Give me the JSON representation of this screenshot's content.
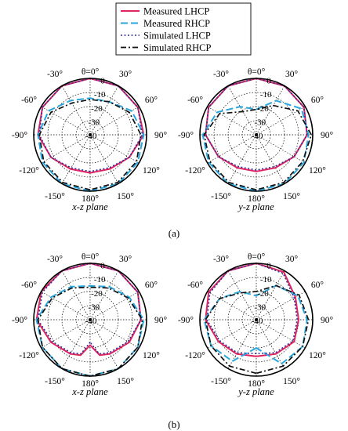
{
  "figure": {
    "legend": [
      {
        "label": "Measured LHCP",
        "color": "#e0245e",
        "dash": "solid"
      },
      {
        "label": "Measured RHCP",
        "color": "#2aa6dc",
        "dash": "long-dash"
      },
      {
        "label": "Simulated LHCP",
        "color": "#2b2b9f",
        "dash": "dotted"
      },
      {
        "label": "Simulated RHCP",
        "color": "#111111",
        "dash": "dash-dot"
      }
    ],
    "row_labels": [
      "(a)",
      "(b)"
    ]
  },
  "chart_data": [
    {
      "type": "polar",
      "panel_label": "x-z plane",
      "angle_labels": [
        "θ=0°",
        "30°",
        "60°",
        "90°",
        "120°",
        "150°",
        "180°",
        "-150°",
        "-120°",
        "-90°",
        "-60°",
        "-30°"
      ],
      "radial_labels": [
        "0",
        "-10",
        "-20",
        "-30",
        "-40"
      ],
      "radial_range_dB": [
        -40,
        0
      ],
      "grid": true,
      "series": [
        {
          "name": "Measured LHCP",
          "theta_deg": [
            -180,
            -150,
            -120,
            -90,
            -60,
            -30,
            0,
            30,
            60,
            90,
            120,
            150,
            180
          ],
          "gain_dB": [
            -13,
            -12,
            -8,
            -3,
            -1,
            0,
            0,
            0,
            -1,
            -2,
            -8,
            -12,
            -13
          ]
        },
        {
          "name": "Measured RHCP",
          "theta_deg": [
            -180,
            -150,
            -120,
            -90,
            -60,
            -30,
            0,
            30,
            60,
            90,
            120,
            150,
            180
          ],
          "gain_dB": [
            0,
            0,
            -1,
            -3,
            -6,
            -12,
            -14,
            -13,
            -6,
            -2,
            -1,
            0,
            0
          ]
        },
        {
          "name": "Simulated LHCP",
          "theta_deg": [
            -180,
            -150,
            -120,
            -90,
            -60,
            -30,
            0,
            30,
            60,
            90,
            120,
            150,
            180
          ],
          "gain_dB": [
            -14,
            -13,
            -8,
            -4,
            -1,
            0,
            0,
            0,
            -1,
            -3,
            -8,
            -13,
            -14
          ]
        },
        {
          "name": "Simulated RHCP",
          "theta_deg": [
            -180,
            -150,
            -120,
            -90,
            -60,
            -30,
            0,
            30,
            60,
            90,
            120,
            150,
            180
          ],
          "gain_dB": [
            -1,
            -1,
            -2,
            -4,
            -8,
            -14,
            -15,
            -13,
            -8,
            -4,
            -2,
            -1,
            -1
          ]
        }
      ]
    },
    {
      "type": "polar",
      "panel_label": "y-z plane",
      "angle_labels": [
        "θ=0°",
        "30°",
        "60°",
        "90°",
        "120°",
        "150°",
        "180°",
        "-150°",
        "-120°",
        "-90°",
        "-60°",
        "-30°"
      ],
      "radial_labels": [
        "0",
        "-10",
        "-20",
        "-30",
        "-40"
      ],
      "radial_range_dB": [
        -40,
        0
      ],
      "grid": true,
      "series": [
        {
          "name": "Measured LHCP",
          "theta_deg": [
            -180,
            -150,
            -120,
            -90,
            -60,
            -30,
            0,
            30,
            60,
            90,
            120,
            150,
            180
          ],
          "gain_dB": [
            -14,
            -13,
            -9,
            -4,
            -1,
            0,
            0,
            0,
            -1,
            -4,
            -9,
            -13,
            -14
          ]
        },
        {
          "name": "Measured RHCP",
          "theta_deg": [
            -180,
            -150,
            -120,
            -90,
            -60,
            -30,
            0,
            30,
            60,
            90,
            120,
            150,
            180
          ],
          "gain_dB": [
            0,
            0,
            -1,
            -2,
            -8,
            -17,
            -22,
            -12,
            -3,
            -3,
            -1,
            0,
            0
          ]
        },
        {
          "name": "Simulated LHCP",
          "theta_deg": [
            -180,
            -150,
            -120,
            -90,
            -60,
            -30,
            0,
            30,
            60,
            90,
            120,
            150,
            180
          ],
          "gain_dB": [
            -15,
            -14,
            -9,
            -4,
            -1,
            0,
            0,
            0,
            -1,
            -4,
            -9,
            -14,
            -15
          ]
        },
        {
          "name": "Simulated RHCP",
          "theta_deg": [
            -180,
            -150,
            -120,
            -90,
            -60,
            -30,
            0,
            30,
            60,
            90,
            120,
            150,
            180
          ],
          "gain_dB": [
            -1,
            -1,
            -2,
            -3,
            -10,
            -21,
            -22,
            -16,
            -6,
            -1,
            -2,
            -1,
            -1
          ]
        }
      ]
    },
    {
      "type": "polar",
      "panel_label": "x-z plane",
      "angle_labels": [
        "θ=0°",
        "30°",
        "60°",
        "90°",
        "120°",
        "150°",
        "180°",
        "-150°",
        "-120°",
        "-90°",
        "-60°",
        "-30°"
      ],
      "radial_labels": [
        "0",
        "-10",
        "-20",
        "-30",
        "-40"
      ],
      "radial_range_dB": [
        -40,
        0
      ],
      "grid": true,
      "series": [
        {
          "name": "Measured LHCP",
          "theta_deg": [
            -180,
            -165,
            -150,
            -120,
            -90,
            -60,
            -30,
            0,
            30,
            60,
            90,
            120,
            150,
            165,
            180
          ],
          "gain_dB": [
            -22,
            -14,
            -12,
            -8,
            -2,
            0,
            0,
            0,
            0,
            -1,
            -4,
            -8,
            -12,
            -14,
            -22
          ]
        },
        {
          "name": "Measured RHCP",
          "theta_deg": [
            -180,
            -150,
            -120,
            -90,
            -60,
            -30,
            0,
            30,
            60,
            90,
            120,
            150,
            180
          ],
          "gain_dB": [
            0,
            0,
            -1,
            -2,
            -8,
            -13,
            -16,
            -13,
            -8,
            -2,
            -1,
            0,
            0
          ]
        },
        {
          "name": "Simulated LHCP",
          "theta_deg": [
            -180,
            -165,
            -150,
            -120,
            -90,
            -60,
            -30,
            0,
            30,
            60,
            90,
            120,
            150,
            165,
            180
          ],
          "gain_dB": [
            -24,
            -15,
            -13,
            -9,
            -3,
            -1,
            0,
            0,
            0,
            -1,
            -4,
            -9,
            -13,
            -15,
            -24
          ]
        },
        {
          "name": "Simulated RHCP",
          "theta_deg": [
            -180,
            -150,
            -120,
            -90,
            -60,
            -30,
            0,
            30,
            60,
            90,
            120,
            150,
            180
          ],
          "gain_dB": [
            0,
            0,
            -1,
            -3,
            -9,
            -14,
            -17,
            -14,
            -9,
            -3,
            -1,
            0,
            0
          ]
        }
      ]
    },
    {
      "type": "polar",
      "panel_label": "y-z plane",
      "angle_labels": [
        "θ=0°",
        "30°",
        "60°",
        "90°",
        "120°",
        "150°",
        "180°",
        "-150°",
        "-120°",
        "-90°",
        "-60°",
        "-30°"
      ],
      "radial_labels": [
        "0",
        "-10",
        "-20",
        "-30",
        "-40"
      ],
      "radial_range_dB": [
        -40,
        0
      ],
      "grid": true,
      "series": [
        {
          "name": "Measured LHCP",
          "theta_deg": [
            -180,
            -150,
            -120,
            -90,
            -60,
            -30,
            0,
            30,
            60,
            90,
            120,
            150,
            180
          ],
          "gain_dB": [
            -14,
            -12,
            -9,
            -4,
            -1,
            0,
            0,
            -1,
            -8,
            -10,
            -9,
            -12,
            -14
          ]
        },
        {
          "name": "Measured RHCP",
          "theta_deg": [
            -180,
            -150,
            -120,
            -90,
            -60,
            -30,
            0,
            30,
            60,
            90,
            120,
            150,
            180
          ],
          "gain_dB": [
            -20,
            -6,
            -3,
            -3,
            -10,
            -17,
            -23,
            -12,
            -6,
            -4,
            -2,
            -4,
            -20
          ]
        },
        {
          "name": "Simulated LHCP",
          "theta_deg": [
            -180,
            -150,
            -120,
            -90,
            -60,
            -30,
            0,
            30,
            60,
            90,
            120,
            150,
            180
          ],
          "gain_dB": [
            -16,
            -13,
            -10,
            -5,
            -2,
            0,
            0,
            -2,
            -9,
            -11,
            -10,
            -13,
            -16
          ]
        },
        {
          "name": "Simulated RHCP",
          "theta_deg": [
            -180,
            -150,
            -120,
            -90,
            -60,
            -30,
            0,
            30,
            60,
            90,
            120,
            150,
            180
          ],
          "gain_dB": [
            -2,
            -2,
            -3,
            -4,
            -10,
            -18,
            -20,
            -12,
            -5,
            -3,
            -2,
            -2,
            -2
          ]
        }
      ]
    }
  ]
}
